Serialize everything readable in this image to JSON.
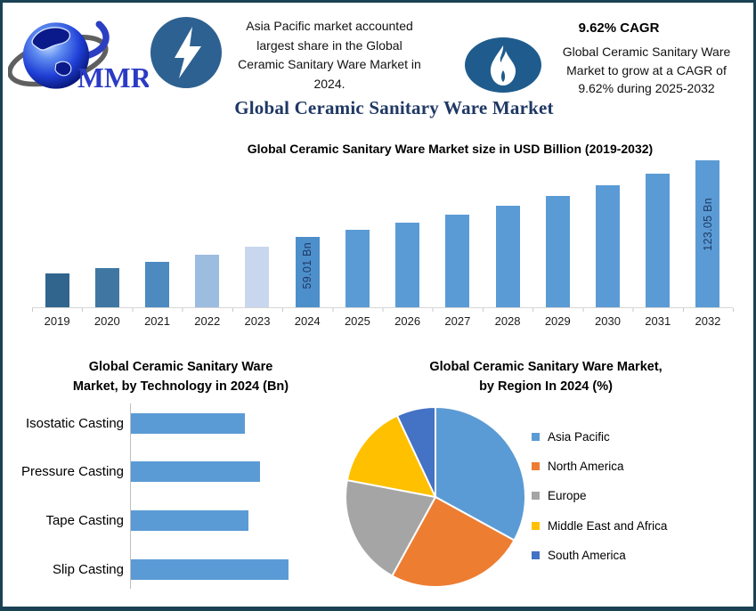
{
  "page": {
    "border_color": "#1a4254",
    "background": "#ffffff"
  },
  "header": {
    "logo": {
      "text": "MMR",
      "globe_icon": "globe-icon",
      "text_color": "#2b3bc4"
    },
    "lightning_icon": {
      "name": "lightning-icon",
      "circle_color": "#2d6191",
      "glyph_color": "#ffffff"
    },
    "highlight_lines": [
      "Asia Pacific market accounted",
      "largest share in the Global",
      "Ceramic Sanitary Ware Market in",
      "2024."
    ],
    "flame_icon": {
      "name": "flame-icon",
      "ellipse_color": "#1f5c8d",
      "glyph_color": "#ffffff"
    },
    "cagr_title": "9.62% CAGR",
    "cagr_lines": [
      "Global Ceramic Sanitary Ware",
      "Market to grow at a CAGR of",
      "9.62% during 2025-2032"
    ]
  },
  "main_title": {
    "text": "Global Ceramic Sanitary Ware Market",
    "color": "#1f3864"
  },
  "chart_data": [
    {
      "id": "market-size-bar-chart",
      "type": "bar",
      "title": "Global Ceramic Sanitary Ware Market size in USD Billion (2019-2032)",
      "unit": "USD Billion",
      "categories": [
        "2019",
        "2020",
        "2021",
        "2022",
        "2023",
        "2024",
        "2025",
        "2026",
        "2027",
        "2028",
        "2029",
        "2030",
        "2031",
        "2032"
      ],
      "values": [
        28,
        33,
        38,
        44,
        50.5,
        59.01,
        64.69,
        70.91,
        77.73,
        85.21,
        93.41,
        102.4,
        112.25,
        123.05
      ],
      "value_labels": {
        "2024": "59.01 Bn",
        "2032": "123.05 Bn"
      },
      "bar_colors": [
        "#31658e",
        "#3f77a2",
        "#4c8ac0",
        "#9cbce0",
        "#c9d7ee",
        "#4d8fcb",
        "#5b9bd5",
        "#5b9bd5",
        "#5b9bd5",
        "#5b9bd5",
        "#5b9bd5",
        "#5b9bd5",
        "#5b9bd5",
        "#5b9bd5"
      ],
      "default_color": "#5b9bd5",
      "label_color": "#1f3864",
      "ylim": [
        0,
        130
      ],
      "grid": false,
      "legend": "none"
    },
    {
      "id": "technology-bar-chart",
      "type": "bar",
      "orientation": "horizontal",
      "title": "Global Ceramic Sanitary Ware Market, by Technology in 2024 (Bn)",
      "title_lines": [
        "Global Ceramic Sanitary Ware",
        "Market, by Technology in 2024 (Bn)"
      ],
      "unit": "Bn",
      "categories": [
        "Isostatic Casting",
        "Pressure Casting",
        "Tape Casting",
        "Slip Casting"
      ],
      "values": [
        13.0,
        14.7,
        13.4,
        18.0
      ],
      "bar_color": "#5b9bd5",
      "grid": false,
      "legend": "none"
    },
    {
      "id": "region-pie-chart",
      "type": "pie",
      "title": "Global Ceramic Sanitary Ware Market, by Region In 2024 (%)",
      "title_lines": [
        "Global Ceramic Sanitary Ware Market,",
        "by Region In 2024 (%)"
      ],
      "labels": [
        "Asia Pacific",
        "North America",
        "Europe",
        "Middle East and Africa",
        "South America"
      ],
      "values": [
        33,
        25,
        20,
        15,
        7
      ],
      "colors": [
        "#5b9bd5",
        "#ed7d31",
        "#a5a5a5",
        "#ffc000",
        "#4472c4"
      ],
      "start_angle_deg": 0,
      "direction": "clockwise",
      "legend_position": "right"
    }
  ]
}
